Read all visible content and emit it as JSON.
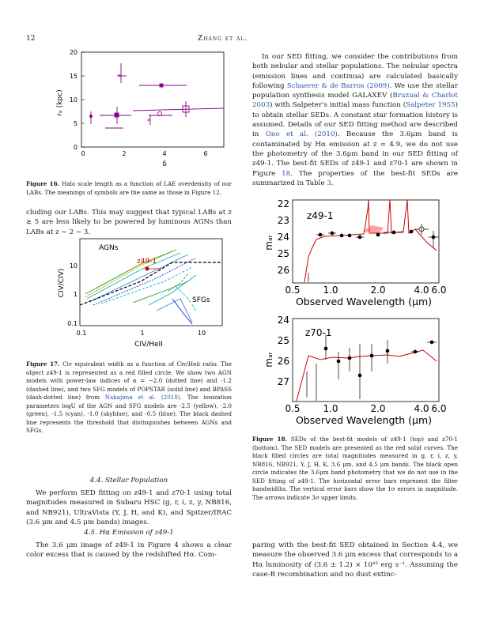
{
  "header": {
    "page_number": "12",
    "running_title": "Zhang et al."
  },
  "fig16": {
    "ylabel": "rₑ (kpc)",
    "xlabel": "δ",
    "yticks": [
      "0",
      "5",
      "10",
      "15",
      "20"
    ],
    "xticks": [
      "0",
      "2",
      "4",
      "6"
    ],
    "caption_label": "Figure 16.",
    "caption": "Halo scale length as a function of LAE overdensity of our LABs. The meanings of symbols are the same as those in Figure 12."
  },
  "left_para1": "cluding our LABs. This may suggest that typical LABs at z ≳ 5 are less likely to be powered by luminous AGNs than LABs at z ∼ 2 − 3.",
  "fig17": {
    "ylabel": "CIV/CIV)",
    "xlabel": "CIV/HeII",
    "yticks": [
      "0.1",
      "1",
      "10"
    ],
    "xticks": [
      "0.1",
      "1",
      "10"
    ],
    "label_agns": "AGNs",
    "label_sfgs": "SFGs",
    "label_object": "z49-1",
    "caption_label": "Figure 17.",
    "caption_text": "Civ equivalent width as a function of Civ/Heii ratio. The object z49-1 is represented as a red filled circle. We show two AGN models with power-law indices of α = −2.0 (dotted line) and -1.2 (dashed line), and two SFG models of POPSTAR (solid line) and BPASS (dash-dotted line) from ",
    "caption_cite": "Nakajima et al. (2018)",
    "caption_text2": ". The ionization parameters logU of the AGN and SFG models are -2.5 (yellow), -2.0 (green), -1.5 (cyan), -1.0 (skyblue), and -0.5 (blue). The black dashed line represents the threshold that distinguishes between AGNs and SFGs."
  },
  "section_44": {
    "heading": "4.4. Stellar Population",
    "text": "We perform SED fitting on z49-1 and z70-1 using total magnitudes measured in Subaru HSC (g, r, i, z, y, NB816, and NB921), UltraVista (Y, J, H, and K), and Spitzer/IRAC (3.6 μm and 4.5 μm bands) images."
  },
  "section_45": {
    "heading": "4.5. Hα Emission of z49-1",
    "text": "The 3.6 μm image of z49-1 in Figure 4 shows a clear color excess that is caused by the redshifted Hα. Com-"
  },
  "right_para1": {
    "t1": "In our SED fitting, we consider the contributions from both nebular and stellar populations. The nebular spectra (emission lines and continua) are calculated basically following ",
    "c1": "Schaerer & de Barros (2009)",
    "t2": ". We use the stellar population synthesis model GALAXEV (",
    "c2": "Bruzual & Charlot 2003",
    "t3": ") with Salpeter's initial mass function (",
    "c3": "Salpeter 1955",
    "t4": ") to obtain stellar SEDs. A constant star formation history is assumed. Details of our SED fitting method are described in ",
    "c4": "Ono et al. (2010)",
    "t5": ". Because the 3.6μm band is contaminated by Hα emission at z = 4.9, we do not use the photometry of the 3.6μm band in our SED fitting of z49-1. The best-fit SEDs of z49-1 and z70-1 are shown in Figure ",
    "c5": "18",
    "t6": ". The properties of the best-fit SEDs are summarized in Table ",
    "c6": "3",
    "t7": "."
  },
  "fig18": {
    "top_label": "z49-1",
    "bottom_label": "z70-1",
    "ylabel": "mₐᵣ",
    "xlabel": "Observed Wavelength (μm)",
    "top_yticks": [
      "22",
      "23",
      "24",
      "25",
      "26"
    ],
    "bottom_yticks": [
      "24",
      "25",
      "26",
      "27"
    ],
    "xticks": [
      "0.5",
      "1.0",
      "2.0",
      "4.0",
      "6.0"
    ],
    "caption_label": "Figure 18.",
    "caption": "SEDs of the best-fit models of z49-1 (top) and z70-1 (bottom). The SED models are presented as the red solid curves. The black filled circles are total magnitudes measured in g, r, i, z, y, NB816, NB921, Y, J, H, K, 3.6 μm, and 4.5 μm bands. The black open circle indicates the 3.6μm band photometry that we do not use in the SED fitting of z49-1. The horizontal error bars represent the filter bandwidths. The vertical error bars show the 1σ errors in magnitude. The arrows indicate 3σ upper limits."
  },
  "right_para2": "paring with the best-fit SED obtained in Section 4.4, we measure the observed 3.6 μm excess that corresponds to a Hα luminosity of (3.6 ± 1.2) × 10⁴³ erg s⁻¹. Assuming the case-B recombination and no dust extinc-"
}
